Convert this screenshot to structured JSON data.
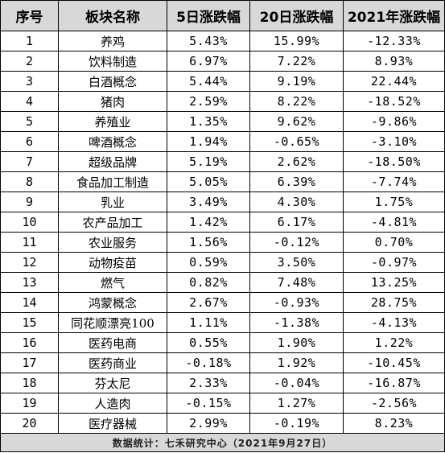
{
  "table": {
    "headers": [
      "序号",
      "板块名称",
      "5日涨跌幅",
      "20日涨跌幅",
      "2021年涨跌幅"
    ],
    "rows": [
      [
        "1",
        "养鸡",
        "5.43%",
        "15.99%",
        "-12.33%"
      ],
      [
        "2",
        "饮料制造",
        "6.97%",
        "7.22%",
        "8.93%"
      ],
      [
        "3",
        "白酒概念",
        "5.44%",
        "9.19%",
        "22.44%"
      ],
      [
        "4",
        "猪肉",
        "2.59%",
        "8.22%",
        "-18.52%"
      ],
      [
        "5",
        "养殖业",
        "1.35%",
        "9.62%",
        "-9.86%"
      ],
      [
        "6",
        "啤酒概念",
        "1.94%",
        "-0.65%",
        "-3.10%"
      ],
      [
        "7",
        "超级品牌",
        "5.19%",
        "2.62%",
        "-18.50%"
      ],
      [
        "8",
        "食品加工制造",
        "5.05%",
        "6.39%",
        "-7.74%"
      ],
      [
        "9",
        "乳业",
        "3.49%",
        "4.30%",
        "1.75%"
      ],
      [
        "10",
        "农产品加工",
        "1.42%",
        "6.17%",
        "-4.81%"
      ],
      [
        "11",
        "农业服务",
        "1.56%",
        "-0.12%",
        "0.70%"
      ],
      [
        "12",
        "动物疫苗",
        "0.59%",
        "3.50%",
        "-0.97%"
      ],
      [
        "13",
        "燃气",
        "0.82%",
        "7.48%",
        "13.25%"
      ],
      [
        "14",
        "鸿蒙概念",
        "2.67%",
        "-0.93%",
        "28.75%"
      ],
      [
        "15",
        "同花顺漂亮100",
        "1.11%",
        "-1.38%",
        "-4.13%"
      ],
      [
        "16",
        "医药电商",
        "0.55%",
        "1.90%",
        "1.22%"
      ],
      [
        "17",
        "医药商业",
        "-0.18%",
        "1.92%",
        "-10.45%"
      ],
      [
        "18",
        "芬太尼",
        "2.33%",
        "-0.04%",
        "-16.87%"
      ],
      [
        "19",
        "人造肉",
        "-0.15%",
        "1.27%",
        "-2.56%"
      ],
      [
        "20",
        "医疗器械",
        "2.99%",
        "-0.19%",
        "8.23%"
      ]
    ],
    "footer": "数据统计：七禾研究中心（2021年9月27日）"
  }
}
